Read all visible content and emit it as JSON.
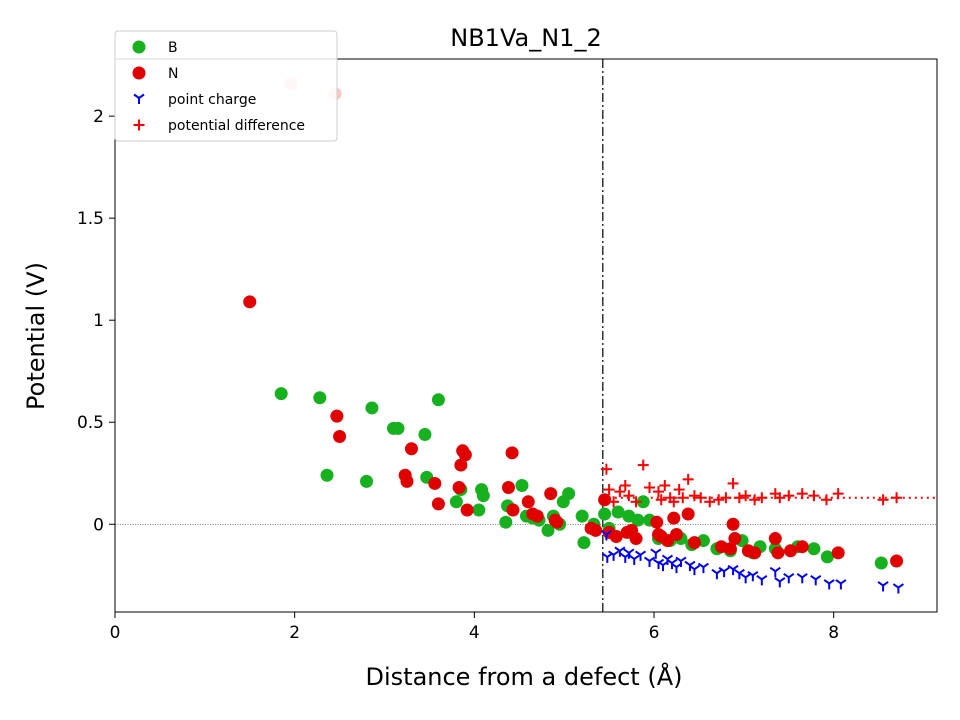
{
  "chart_data": {
    "type": "scatter",
    "title": "NB1Va_N1_2",
    "xlabel": "Distance from a defect (Å)",
    "ylabel": "Potential (V)",
    "xlim": [
      0,
      9.15
    ],
    "ylim": [
      -0.43,
      2.28
    ],
    "x_ticks": [
      0,
      2,
      4,
      6,
      8
    ],
    "x_tick_labels": [
      "0",
      "2",
      "4",
      "6",
      "8"
    ],
    "y_ticks": [
      0,
      0.5,
      1,
      1.5,
      2
    ],
    "y_tick_labels": [
      "0",
      "0.5",
      "1",
      "1.5",
      "2"
    ],
    "grid": false,
    "legend_position": "top-left",
    "defect_region_boundary_x": 5.43,
    "zero_line_y": 0,
    "average_potential_difference": 0.13,
    "colors": {
      "B": "#17b01f",
      "N": "#e00000",
      "B_excluded": "#c7ecc9",
      "N_excluded": "#f7c8c8",
      "point_charge": "#0000ee",
      "potential_difference": "#ff0000"
    },
    "series": [
      {
        "name": "B",
        "marker": "circle",
        "excluded_points": [],
        "points": [
          [
            1.85,
            0.64
          ],
          [
            2.28,
            0.62
          ],
          [
            2.36,
            0.24
          ],
          [
            2.8,
            0.21
          ],
          [
            2.86,
            0.57
          ],
          [
            3.1,
            0.47
          ],
          [
            3.15,
            0.47
          ],
          [
            3.45,
            0.44
          ],
          [
            3.47,
            0.23
          ],
          [
            3.6,
            0.61
          ],
          [
            3.8,
            0.11
          ],
          [
            3.85,
            0.17
          ],
          [
            4.05,
            0.07
          ],
          [
            4.08,
            0.17
          ],
          [
            4.1,
            0.14
          ],
          [
            4.35,
            0.01
          ],
          [
            4.37,
            0.09
          ],
          [
            4.53,
            0.19
          ],
          [
            4.58,
            0.04
          ],
          [
            4.65,
            0.03
          ],
          [
            4.72,
            0.02
          ],
          [
            4.82,
            -0.03
          ],
          [
            4.88,
            0.04
          ],
          [
            4.95,
            0.0
          ],
          [
            4.99,
            0.11
          ],
          [
            5.05,
            0.15
          ],
          [
            5.2,
            0.04
          ],
          [
            5.22,
            -0.09
          ],
          [
            5.33,
            0.0
          ],
          [
            5.45,
            0.05
          ],
          [
            5.5,
            -0.02
          ],
          [
            5.6,
            0.06
          ],
          [
            5.72,
            0.04
          ],
          [
            5.82,
            0.02
          ],
          [
            5.88,
            0.11
          ],
          [
            5.95,
            0.02
          ],
          [
            6.05,
            -0.07
          ],
          [
            6.18,
            -0.08
          ],
          [
            6.3,
            -0.07
          ],
          [
            6.42,
            -0.1
          ],
          [
            6.55,
            -0.08
          ],
          [
            6.7,
            -0.12
          ],
          [
            6.85,
            -0.13
          ],
          [
            6.98,
            -0.08
          ],
          [
            7.1,
            -0.14
          ],
          [
            7.18,
            -0.11
          ],
          [
            7.35,
            -0.12
          ],
          [
            7.6,
            -0.11
          ],
          [
            7.78,
            -0.12
          ],
          [
            7.93,
            -0.16
          ],
          [
            8.53,
            -0.19
          ]
        ]
      },
      {
        "name": "N",
        "marker": "circle",
        "excluded_points": [
          [
            1.96,
            2.16
          ],
          [
            2.45,
            2.11
          ]
        ],
        "points": [
          [
            1.5,
            1.09
          ],
          [
            2.47,
            0.53
          ],
          [
            2.5,
            0.43
          ],
          [
            3.23,
            0.24
          ],
          [
            3.25,
            0.21
          ],
          [
            3.3,
            0.37
          ],
          [
            3.56,
            0.2
          ],
          [
            3.6,
            0.1
          ],
          [
            3.83,
            0.18
          ],
          [
            3.85,
            0.29
          ],
          [
            3.87,
            0.36
          ],
          [
            3.9,
            0.34
          ],
          [
            3.92,
            0.07
          ],
          [
            4.38,
            0.18
          ],
          [
            4.42,
            0.35
          ],
          [
            4.43,
            0.07
          ],
          [
            4.6,
            0.11
          ],
          [
            4.65,
            0.05
          ],
          [
            4.7,
            0.04
          ],
          [
            4.85,
            0.15
          ],
          [
            4.9,
            0.02
          ],
          [
            4.92,
            0.01
          ],
          [
            5.3,
            -0.02
          ],
          [
            5.35,
            -0.03
          ],
          [
            5.45,
            0.12
          ],
          [
            5.5,
            -0.04
          ],
          [
            5.58,
            -0.06
          ],
          [
            5.7,
            -0.04
          ],
          [
            5.75,
            -0.03
          ],
          [
            5.8,
            -0.07
          ],
          [
            6.03,
            0.01
          ],
          [
            6.05,
            -0.05
          ],
          [
            6.08,
            -0.06
          ],
          [
            6.15,
            -0.08
          ],
          [
            6.22,
            0.03
          ],
          [
            6.25,
            -0.05
          ],
          [
            6.38,
            0.05
          ],
          [
            6.45,
            -0.09
          ],
          [
            6.75,
            -0.11
          ],
          [
            6.85,
            -0.12
          ],
          [
            6.88,
            0.0
          ],
          [
            6.9,
            -0.07
          ],
          [
            7.05,
            -0.13
          ],
          [
            7.12,
            -0.14
          ],
          [
            7.35,
            -0.07
          ],
          [
            7.38,
            -0.14
          ],
          [
            7.52,
            -0.13
          ],
          [
            7.65,
            -0.11
          ],
          [
            8.05,
            -0.14
          ],
          [
            8.7,
            -0.18
          ]
        ]
      },
      {
        "name": "point charge",
        "marker": "tri_down",
        "points": [
          [
            5.47,
            -0.05
          ],
          [
            5.48,
            -0.16
          ],
          [
            5.55,
            -0.15
          ],
          [
            5.62,
            -0.13
          ],
          [
            5.68,
            -0.16
          ],
          [
            5.72,
            -0.14
          ],
          [
            5.78,
            -0.17
          ],
          [
            5.85,
            -0.15
          ],
          [
            5.95,
            -0.18
          ],
          [
            6.02,
            -0.14
          ],
          [
            6.05,
            -0.19
          ],
          [
            6.1,
            -0.2
          ],
          [
            6.15,
            -0.17
          ],
          [
            6.2,
            -0.19
          ],
          [
            6.25,
            -0.21
          ],
          [
            6.3,
            -0.18
          ],
          [
            6.4,
            -0.2
          ],
          [
            6.45,
            -0.22
          ],
          [
            6.55,
            -0.21
          ],
          [
            6.7,
            -0.24
          ],
          [
            6.78,
            -0.23
          ],
          [
            6.88,
            -0.22
          ],
          [
            6.95,
            -0.24
          ],
          [
            7.02,
            -0.26
          ],
          [
            7.1,
            -0.25
          ],
          [
            7.2,
            -0.27
          ],
          [
            7.35,
            -0.23
          ],
          [
            7.4,
            -0.28
          ],
          [
            7.5,
            -0.26
          ],
          [
            7.65,
            -0.26
          ],
          [
            7.8,
            -0.27
          ],
          [
            7.95,
            -0.29
          ],
          [
            8.08,
            -0.29
          ],
          [
            8.55,
            -0.3
          ],
          [
            8.72,
            -0.31
          ]
        ]
      },
      {
        "name": "potential difference",
        "marker": "plus",
        "points": [
          [
            5.47,
            0.27
          ],
          [
            5.5,
            0.17
          ],
          [
            5.55,
            0.11
          ],
          [
            5.62,
            0.16
          ],
          [
            5.68,
            0.19
          ],
          [
            5.72,
            0.14
          ],
          [
            5.8,
            0.11
          ],
          [
            5.88,
            0.29
          ],
          [
            5.95,
            0.18
          ],
          [
            6.05,
            0.16
          ],
          [
            6.08,
            0.12
          ],
          [
            6.12,
            0.19
          ],
          [
            6.18,
            0.13
          ],
          [
            6.22,
            0.11
          ],
          [
            6.28,
            0.17
          ],
          [
            6.32,
            0.13
          ],
          [
            6.38,
            0.22
          ],
          [
            6.45,
            0.14
          ],
          [
            6.52,
            0.13
          ],
          [
            6.62,
            0.11
          ],
          [
            6.72,
            0.12
          ],
          [
            6.8,
            0.13
          ],
          [
            6.88,
            0.2
          ],
          [
            6.95,
            0.13
          ],
          [
            7.02,
            0.14
          ],
          [
            7.12,
            0.12
          ],
          [
            7.2,
            0.13
          ],
          [
            7.35,
            0.15
          ],
          [
            7.4,
            0.13
          ],
          [
            7.5,
            0.14
          ],
          [
            7.65,
            0.15
          ],
          [
            7.78,
            0.14
          ],
          [
            7.92,
            0.12
          ],
          [
            8.05,
            0.15
          ],
          [
            8.55,
            0.12
          ],
          [
            8.7,
            0.13
          ]
        ]
      }
    ]
  }
}
